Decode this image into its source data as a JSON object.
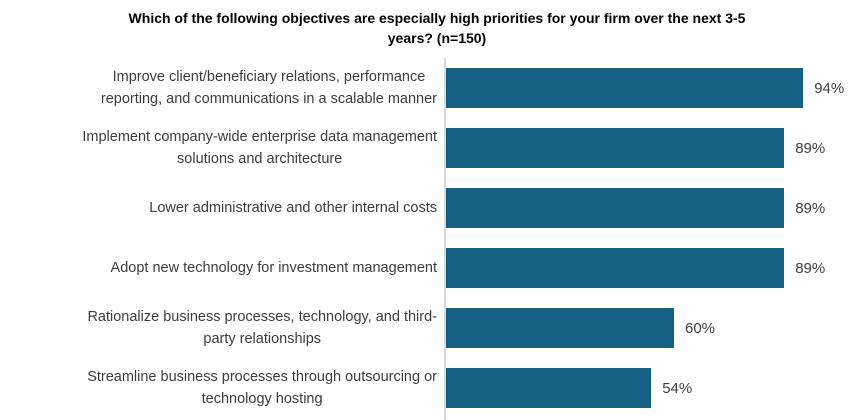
{
  "chart_data": {
    "type": "bar",
    "orientation": "horizontal",
    "title": "Which of the following objectives are especially high priorities for your firm over the next 3-5\nyears? (n=150)",
    "categories": [
      "Improve client/beneficiary relations, performance\nreporting, and communications in a scalable manner",
      "Implement company-wide enterprise data management\nsolutions and architecture",
      "Lower administrative and other internal costs",
      "Adopt new technology for investment management",
      "Rationalize business processes, technology, and third-\nparty relationships",
      "Streamline business processes through outsourcing or\ntechnology hosting"
    ],
    "values": [
      94,
      89,
      89,
      89,
      60,
      54
    ],
    "value_labels": [
      "94%",
      "89%",
      "89%",
      "89%",
      "60%",
      "54%"
    ],
    "xlim": [
      0,
      100
    ],
    "grid": "off",
    "legend": "none",
    "bar_color": "#156082",
    "axis_line_color": "#d9d9d9",
    "category_label_color": "#3d3d3d",
    "value_label_color": "#404040",
    "title_color": "#000000"
  }
}
